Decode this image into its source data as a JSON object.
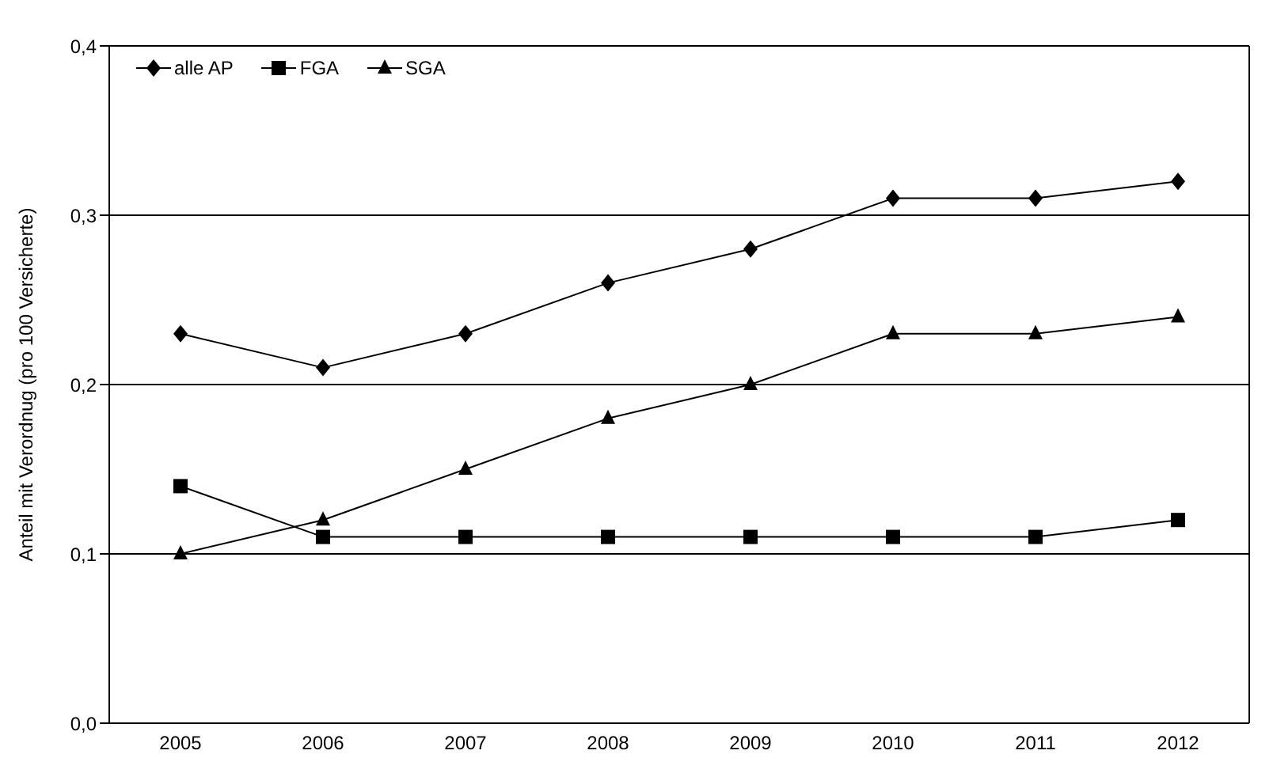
{
  "chart_data": {
    "type": "line",
    "ylabel": "Anteil mit Verordnug (pro 100 Versicherte)",
    "categories": [
      "2005",
      "2006",
      "2007",
      "2008",
      "2009",
      "2010",
      "2011",
      "2012"
    ],
    "series": [
      {
        "name": "alle AP",
        "color": "#000000",
        "marker": "diamond",
        "values": [
          0.23,
          0.21,
          0.23,
          0.26,
          0.28,
          0.31,
          0.31,
          0.32
        ]
      },
      {
        "name": "FGA",
        "color": "#000000",
        "marker": "square",
        "values": [
          0.14,
          0.11,
          0.11,
          0.11,
          0.11,
          0.11,
          0.11,
          0.12
        ]
      },
      {
        "name": "SGA",
        "color": "#000000",
        "marker": "triangle",
        "values": [
          0.1,
          0.12,
          0.15,
          0.18,
          0.2,
          0.23,
          0.23,
          0.24
        ]
      }
    ],
    "ylim": [
      0,
      0.4
    ],
    "yticks": [
      {
        "value": 0,
        "label": "0,0"
      },
      {
        "value": 0.1,
        "label": "0,1"
      },
      {
        "value": 0.2,
        "label": "0,2"
      },
      {
        "value": 0.3,
        "label": "0,3"
      },
      {
        "value": 0.4,
        "label": "0,4"
      }
    ],
    "grid": "y",
    "legend": "top left",
    "line_style": "solid"
  }
}
